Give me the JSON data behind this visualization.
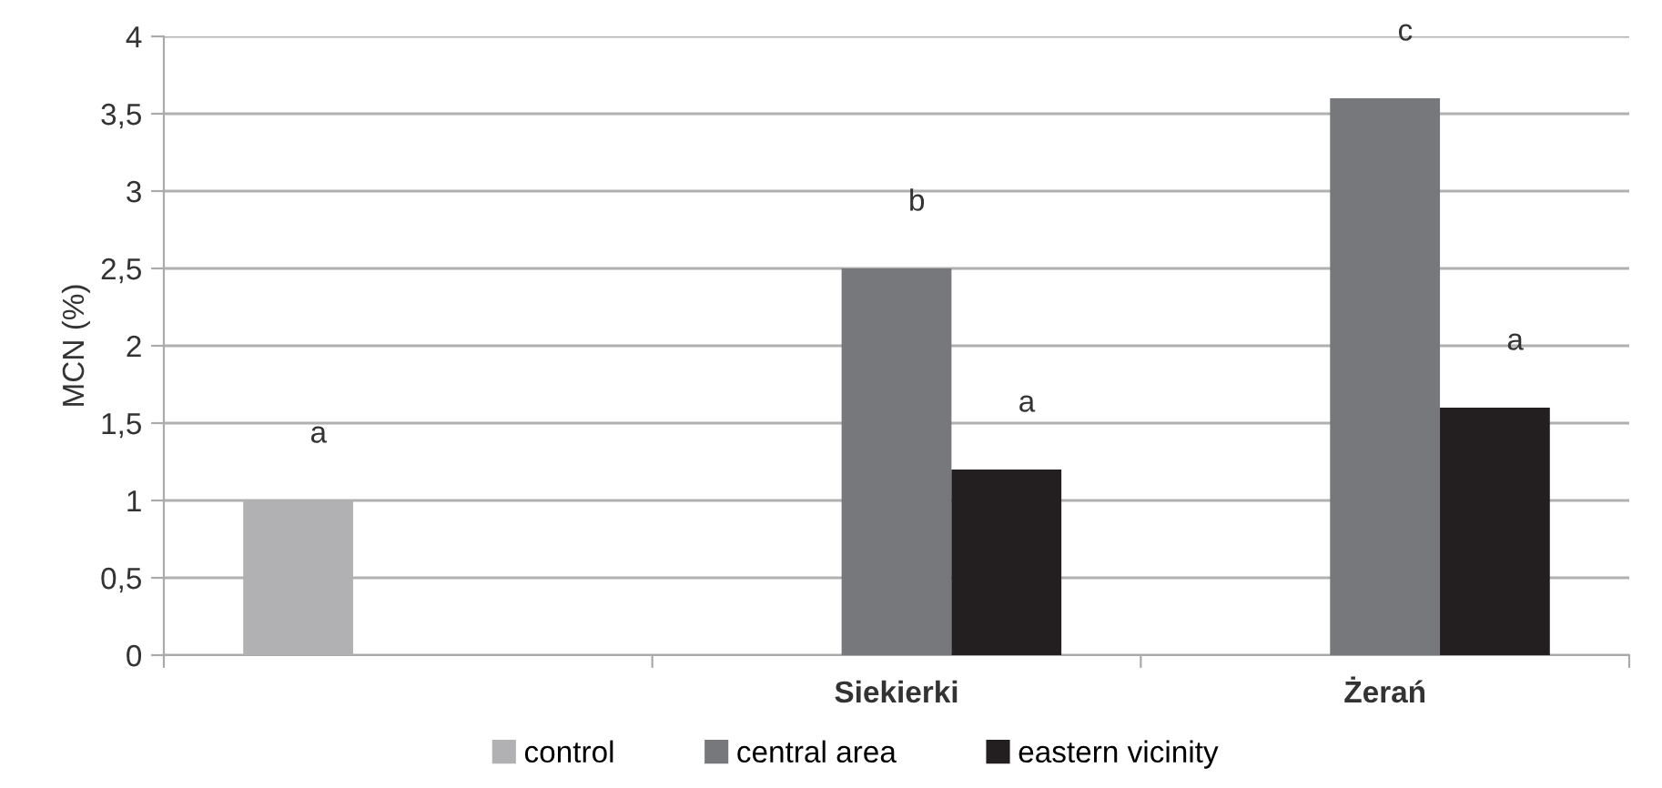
{
  "chart_data": {
    "type": "bar",
    "ylabel": "MCN (%)",
    "categories": [
      null,
      "Siekierki",
      "Żerań"
    ],
    "series": [
      {
        "name": "control",
        "color": "#b1b1b3",
        "values": [
          1,
          null,
          null
        ],
        "value_labels": [
          "a",
          null,
          null
        ]
      },
      {
        "name": "central area",
        "color": "#77787b",
        "values": [
          null,
          2.5,
          3.6
        ],
        "value_labels": [
          null,
          "b",
          "c"
        ]
      },
      {
        "name": "eastern vicinity",
        "color": "#231f20",
        "values": [
          null,
          1.2,
          1.6
        ],
        "value_labels": [
          null,
          "a",
          "a"
        ]
      }
    ],
    "ylim": [
      0,
      4
    ],
    "yticks": [
      0,
      {
        "value": 0.5,
        "label": "0,5"
      },
      1,
      {
        "value": 1.5,
        "label": "1,5"
      },
      2,
      {
        "value": 2.5,
        "label": "2,5"
      },
      3,
      {
        "value": 3.5,
        "label": "3,5"
      },
      4
    ],
    "grid": "y",
    "legend": "bottom"
  }
}
